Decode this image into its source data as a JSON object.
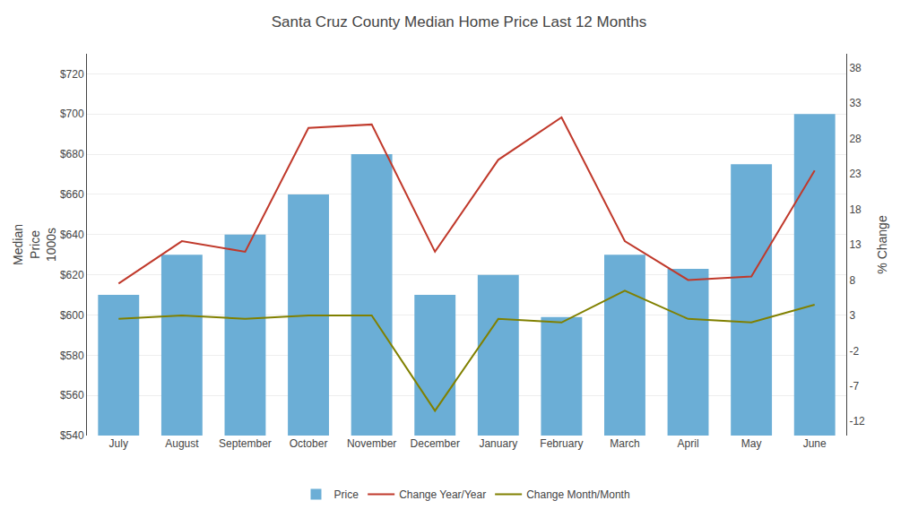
{
  "chart_data": {
    "type": "bar",
    "title": "Santa Cruz County Median Home Price Last 12 Months",
    "categories": [
      "July",
      "August",
      "September",
      "October",
      "November",
      "December",
      "January",
      "February",
      "March",
      "April",
      "May",
      "June"
    ],
    "series": [
      {
        "name": "Price",
        "type": "bar",
        "color": "#6baed6",
        "values": [
          610,
          630,
          640,
          660,
          680,
          610,
          620,
          599,
          630,
          623,
          675,
          700
        ]
      },
      {
        "name": "Change Year/Year",
        "type": "line",
        "color": "#c0392b",
        "axis": "y2",
        "values": [
          7.5,
          13.5,
          12.0,
          29.5,
          30.0,
          12.0,
          25.0,
          31.0,
          13.5,
          8.0,
          8.5,
          23.5
        ]
      },
      {
        "name": "Change Month/Month",
        "type": "line",
        "color": "#808000",
        "axis": "y2",
        "values": [
          2.5,
          3.0,
          2.5,
          3.0,
          3.0,
          -10.5,
          2.5,
          2.0,
          6.5,
          2.5,
          2.0,
          4.5
        ]
      }
    ],
    "ylim": [
      540,
      730
    ],
    "yticks": [
      {
        "value": 540,
        "label": "$540"
      },
      {
        "value": 560,
        "label": "$560"
      },
      {
        "value": 580,
        "label": "$580"
      },
      {
        "value": 600,
        "label": "$600"
      },
      {
        "value": 620,
        "label": "$620"
      },
      {
        "value": 640,
        "label": "$640"
      },
      {
        "value": 660,
        "label": "$660"
      },
      {
        "value": 680,
        "label": "$680"
      },
      {
        "value": 700,
        "label": "$700"
      },
      {
        "value": 720,
        "label": "$720"
      }
    ],
    "y2lim": [
      -14,
      40
    ],
    "y2ticks": [
      -12,
      -7,
      -2,
      3,
      8,
      13,
      18,
      23,
      28,
      33,
      38
    ],
    "ylabel": "Median\nPrice\n1000s",
    "y2label": "% Change",
    "grid": true,
    "legend": "bottom"
  }
}
